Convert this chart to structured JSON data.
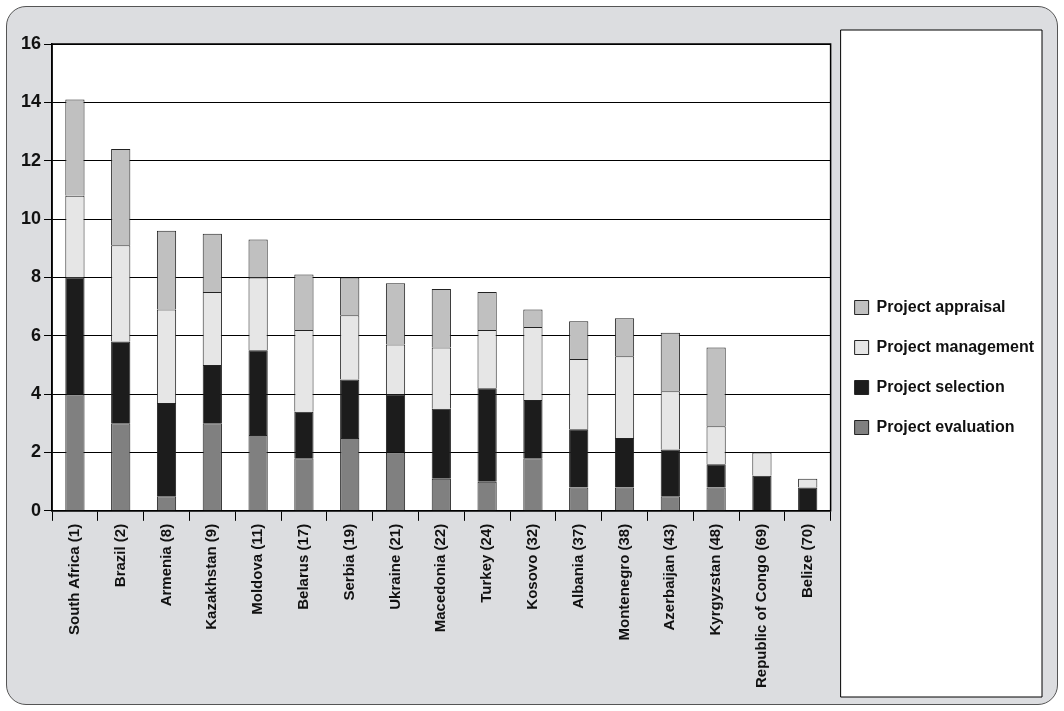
{
  "chart_data": {
    "type": "bar",
    "stacked": true,
    "categories": [
      "South Africa (1)",
      "Brazil (2)",
      "Armenia (8)",
      "Kazakhstan (9)",
      "Moldova (11)",
      "Belarus (17)",
      "Serbia (19)",
      "Ukraine (21)",
      "Macedonia (22)",
      "Turkey (24)",
      "Kosovo (32)",
      "Albania (37)",
      "Montenegro (38)",
      "Azerbaijan (43)",
      "Kyrgyzstan (48)",
      "Republic of Congo (69)",
      "Belize (70)"
    ],
    "series": [
      {
        "name": "Project evaluation",
        "color": "#808080",
        "values": [
          4,
          3,
          0.5,
          3,
          2.6,
          1.8,
          2.5,
          2,
          1.1,
          1,
          1.8,
          0.8,
          0.8,
          0.5,
          0.8,
          0,
          0
        ]
      },
      {
        "name": "Project selection",
        "color": "#1c1c1c",
        "values": [
          4,
          2.8,
          3.2,
          2,
          2.9,
          1.6,
          2,
          2,
          2.4,
          3.2,
          2,
          2,
          1.7,
          1.6,
          0.8,
          1.2,
          0.8
        ]
      },
      {
        "name": "Project management",
        "color": "#e6e6e6",
        "values": [
          2.8,
          3.3,
          3.2,
          2.5,
          2.5,
          2.8,
          2.2,
          1.7,
          2.1,
          2,
          2.5,
          2.4,
          2.8,
          2,
          1.3,
          0.8,
          0.3
        ]
      },
      {
        "name": "Project appraisal",
        "color": "#c0c0c0",
        "values": [
          3.3,
          3.3,
          2.7,
          2,
          1.3,
          1.9,
          1.3,
          2.1,
          2,
          1.3,
          0.6,
          1.3,
          1.3,
          2,
          2.7,
          0,
          0
        ]
      }
    ],
    "ylim": [
      0,
      16
    ],
    "yticks": [
      0,
      2,
      4,
      6,
      8,
      10,
      12,
      14,
      16
    ],
    "grid": "y",
    "legend": "right"
  }
}
